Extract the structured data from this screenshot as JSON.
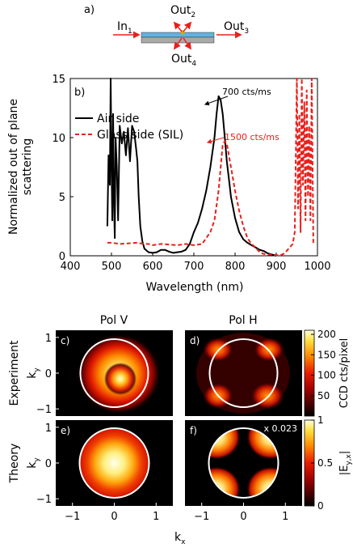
{
  "panel_a": {
    "label": "a)",
    "in1": "In",
    "in1_sub": "1",
    "out2": "Out",
    "out2_sub": "2",
    "out3": "Out",
    "out3_sub": "3",
    "out4": "Out",
    "out4_sub": "4",
    "arrow_color": "#e8201c",
    "film_color": "#5fb4e0",
    "substrate_color": "#a9a9a9"
  },
  "chart_data": [
    {
      "type": "line",
      "panel_label": "b)",
      "xlabel": "Wavelength (nm)",
      "ylabel_line1": "Normalized  out of plane",
      "ylabel_line2": "scattering",
      "xlim": [
        400,
        1000
      ],
      "ylim": [
        0,
        15
      ],
      "xticks": [
        "400",
        "500",
        "600",
        "700",
        "800",
        "900",
        "1000"
      ],
      "yticks": [
        "0",
        "5",
        "10",
        "15"
      ],
      "legend_position": "top-left",
      "series": [
        {
          "name": "Air side",
          "color": "#000000",
          "dash": "solid",
          "x": [
            490,
            493,
            496,
            498,
            500,
            502,
            504,
            506,
            508,
            510,
            513,
            516,
            520,
            525,
            530,
            535,
            540,
            545,
            550,
            555,
            560,
            563,
            566,
            570,
            575,
            580,
            590,
            600,
            610,
            620,
            630,
            640,
            650,
            660,
            670,
            680,
            690,
            700,
            710,
            720,
            730,
            740,
            750,
            755,
            760,
            765,
            770,
            775,
            780,
            785,
            790,
            800,
            810,
            820,
            830,
            840,
            850,
            860,
            870,
            880,
            890,
            900
          ],
          "y": [
            2.5,
            8.5,
            6.0,
            15.0,
            8.0,
            3.0,
            12.0,
            4.5,
            1.5,
            10.0,
            7.5,
            3.0,
            11.0,
            9.5,
            10.5,
            8.5,
            10.8,
            8.0,
            11.0,
            10.5,
            9.0,
            8.0,
            5.0,
            2.5,
            1.2,
            0.6,
            0.3,
            0.25,
            0.3,
            0.5,
            0.5,
            0.35,
            0.25,
            0.3,
            0.35,
            0.5,
            1.0,
            2.0,
            2.8,
            4.0,
            5.5,
            7.5,
            10.0,
            12.0,
            13.5,
            13.2,
            12.0,
            10.0,
            8.0,
            6.5,
            5.0,
            3.2,
            2.0,
            1.4,
            1.1,
            0.9,
            0.7,
            0.5,
            0.4,
            0.2,
            0.1,
            0.0
          ]
        },
        {
          "name": "Glass side (SIL)",
          "color": "#e8201c",
          "dash": "dashed",
          "x": [
            490,
            500,
            520,
            540,
            560,
            580,
            590,
            600,
            620,
            640,
            660,
            680,
            700,
            720,
            730,
            740,
            750,
            760,
            770,
            775,
            780,
            790,
            800,
            810,
            820,
            830,
            840,
            850,
            860,
            870,
            880,
            890,
            900,
            910,
            920,
            930,
            940,
            945,
            950,
            953,
            956,
            959,
            962,
            965,
            968,
            971,
            974,
            977,
            980,
            983,
            986,
            990
          ],
          "y": [
            1.1,
            1.1,
            1.0,
            1.05,
            1.1,
            1.0,
            1.0,
            0.9,
            1.0,
            0.95,
            0.9,
            1.0,
            0.9,
            1.0,
            1.5,
            2.0,
            3.0,
            5.5,
            9.4,
            9.7,
            9.5,
            7.5,
            5.5,
            3.8,
            2.5,
            1.5,
            1.0,
            0.7,
            0.3,
            0.15,
            0.1,
            0.1,
            0.05,
            0.05,
            0.2,
            0.6,
            1.0,
            2.0,
            15.0,
            4.0,
            12.0,
            2.0,
            15.0,
            6.0,
            13.0,
            3.0,
            14.0,
            5.0,
            11.0,
            3.0,
            15.0,
            1.0
          ]
        }
      ],
      "annotations": [
        {
          "text": "700 cts/ms",
          "color": "#000000",
          "x": 770,
          "y": 13.2
        },
        {
          "text": "1500 cts/ms",
          "color": "#e8201c",
          "x": 780,
          "y": 9.7
        }
      ]
    },
    {
      "type": "heatmap",
      "layout": "2x2 grid",
      "column_titles": [
        "Pol V",
        "Pol H"
      ],
      "row_titles": [
        "Experiment",
        "Theory"
      ],
      "xlabel": "k",
      "xlabel_sub": "x",
      "ylabel": "k",
      "ylabel_sub": "y",
      "xticks": [
        "−1",
        "0",
        "1"
      ],
      "yticks": [
        "1",
        "0",
        "−1"
      ],
      "xlim": [
        -1.4,
        1.4
      ],
      "ylim": [
        -1.2,
        1.2
      ],
      "circle_radius_k": 1.0,
      "panels": [
        {
          "label": "c)",
          "row": "Experiment",
          "col": "Pol V",
          "pattern": "single lobe centered near (0.1,-0.2)"
        },
        {
          "label": "d)",
          "row": "Experiment",
          "col": "Pol H",
          "pattern": "four lobes at diagonals"
        },
        {
          "label": "e)",
          "row": "Theory",
          "col": "Pol V",
          "pattern": "single centered lobe"
        },
        {
          "label": "f)",
          "row": "Theory",
          "col": "Pol H",
          "pattern": "four lobes at diagonals",
          "scale_note": "x 0.023"
        }
      ],
      "colorbars": [
        {
          "label": "CCD cts/pixel",
          "ticks": [
            "200",
            "150",
            "100",
            "50"
          ],
          "range": [
            0,
            210
          ]
        },
        {
          "label": "|E",
          "label_sub": "y,x",
          "label_end": "|",
          "ticks": [
            "1",
            "0.5",
            "0"
          ],
          "range": [
            0,
            1
          ]
        }
      ],
      "colormap": "hot"
    }
  ]
}
